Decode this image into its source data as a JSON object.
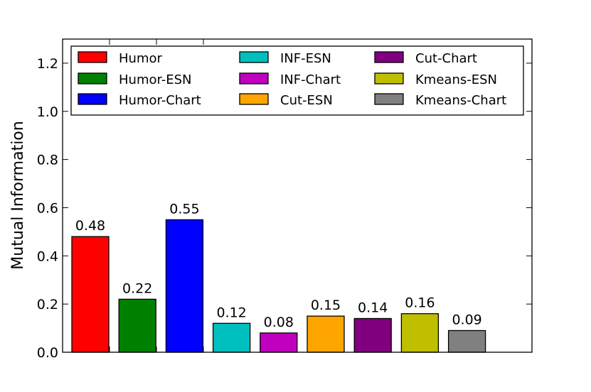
{
  "chart_data": {
    "type": "bar",
    "ylabel": "Mutual Information",
    "ylim": [
      0.0,
      1.3
    ],
    "yticks": [
      "0.0",
      "0.2",
      "0.4",
      "0.6",
      "0.8",
      "1.0",
      "1.2"
    ],
    "grid": false,
    "legend_position": "top",
    "series": [
      {
        "name": "Humor",
        "value": 0.48,
        "label": "0.48",
        "color": "#ff0000"
      },
      {
        "name": "Humor-ESN",
        "value": 0.22,
        "label": "0.22",
        "color": "#008000"
      },
      {
        "name": "Humor-Chart",
        "value": 0.55,
        "label": "0.55",
        "color": "#0000ff"
      },
      {
        "name": "INF-ESN",
        "value": 0.12,
        "label": "0.12",
        "color": "#00bfbf"
      },
      {
        "name": "INF-Chart",
        "value": 0.08,
        "label": "0.08",
        "color": "#bf00bf"
      },
      {
        "name": "Cut-ESN",
        "value": 0.15,
        "label": "0.15",
        "color": "#ffa500"
      },
      {
        "name": "Cut-Chart",
        "value": 0.14,
        "label": "0.14",
        "color": "#800080"
      },
      {
        "name": "Kmeans-ESN",
        "value": 0.16,
        "label": "0.16",
        "color": "#bfbf00"
      },
      {
        "name": "Kmeans-Chart",
        "value": 0.09,
        "label": "0.09",
        "color": "#808080"
      }
    ]
  }
}
